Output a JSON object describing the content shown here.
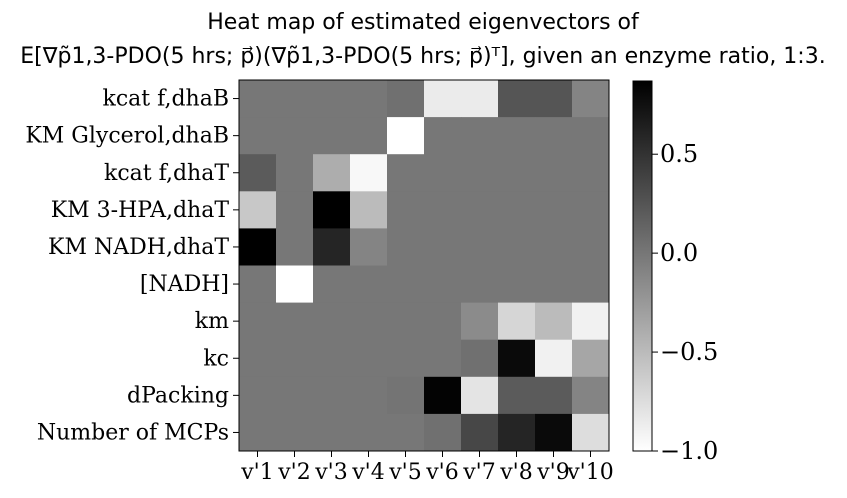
{
  "chart_data": {
    "type": "heatmap",
    "title_lines": [
      "Heat map of estimated eigenvectors of",
      "E[∇p̃1,3-PDO(5 hrs; p⃗)(∇p̃1,3-PDO(5 hrs; p⃗)ᵀ], given an enzyme ratio, 1:3."
    ],
    "rows": [
      "k_cat^{f,dhaB}",
      "K_M^{Glycerol,dhaB}",
      "k_cat^{f,dhaT}",
      "K_M^{3-HPA,dhaT}",
      "K_M^{NADH,dhaT}",
      "[NADH]",
      "k_m",
      "k_c",
      "dPacking",
      "Number of MCPs"
    ],
    "row_labels_display": [
      "kcat f,dhaB",
      "KM Glycerol,dhaB",
      "kcat f,dhaT",
      "KM 3-HPA,dhaT",
      "KM NADH,dhaT",
      "[NADH]",
      "km",
      "kc",
      "dPacking",
      "Number of MCPs"
    ],
    "cols": [
      "v'1",
      "v'2",
      "v'3",
      "v'4",
      "v'5",
      "v'6",
      "v'7",
      "v'8",
      "v'9",
      "v'10"
    ],
    "values": [
      [
        0.0,
        0.0,
        0.0,
        0.0,
        0.05,
        -0.85,
        -0.85,
        0.25,
        0.25,
        -0.1
      ],
      [
        0.0,
        0.0,
        0.0,
        0.0,
        -1.0,
        0.0,
        0.0,
        0.0,
        0.0,
        0.0
      ],
      [
        0.2,
        0.0,
        -0.4,
        -0.95,
        0.0,
        0.0,
        0.0,
        0.0,
        0.0,
        0.0
      ],
      [
        -0.6,
        0.0,
        0.88,
        -0.5,
        0.0,
        0.0,
        0.0,
        0.0,
        0.0,
        0.0
      ],
      [
        0.92,
        0.0,
        0.6,
        -0.1,
        0.0,
        0.0,
        0.0,
        0.0,
        0.0,
        0.0
      ],
      [
        0.0,
        -1.0,
        0.0,
        0.0,
        0.0,
        0.0,
        0.0,
        0.0,
        0.0,
        0.0
      ],
      [
        0.0,
        0.0,
        0.0,
        0.0,
        0.0,
        0.0,
        -0.15,
        -0.7,
        -0.5,
        -0.9
      ],
      [
        0.0,
        0.0,
        0.0,
        0.0,
        0.0,
        0.0,
        0.05,
        0.8,
        -0.9,
        -0.35
      ],
      [
        0.0,
        0.0,
        0.0,
        0.0,
        0.02,
        0.85,
        -0.8,
        0.2,
        0.2,
        -0.1
      ],
      [
        0.0,
        0.0,
        0.0,
        0.0,
        0.0,
        0.05,
        0.35,
        0.6,
        0.8,
        -0.75
      ]
    ],
    "colorbar": {
      "vmin": -1.0,
      "vmax": 0.87,
      "ticks": [
        0.5,
        0.0,
        -0.5,
        -1.0
      ],
      "tick_labels": [
        "0.5",
        "0.0",
        "−0.5",
        "−1.0"
      ],
      "colormap": "gray_r"
    },
    "grid": false
  }
}
